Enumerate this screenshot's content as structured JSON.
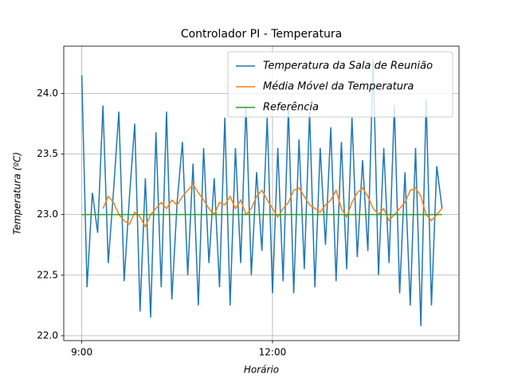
{
  "chart_data": {
    "type": "line",
    "title": "Controlador PI - Temperatura",
    "x_label": "Horário",
    "y_label": "Temperatura (ºC)",
    "x": [
      "9:00",
      "9:05",
      "9:10",
      "9:15",
      "9:20",
      "9:25",
      "9:30",
      "9:35",
      "9:40",
      "9:45",
      "9:50",
      "9:55",
      "10:00",
      "10:05",
      "10:10",
      "10:15",
      "10:20",
      "10:25",
      "10:30",
      "10:35",
      "10:40",
      "10:45",
      "10:50",
      "10:55",
      "11:00",
      "11:05",
      "11:10",
      "11:15",
      "11:20",
      "11:25",
      "11:30",
      "11:35",
      "11:40",
      "11:45",
      "11:50",
      "11:55",
      "12:00",
      "12:05",
      "12:10",
      "12:15",
      "12:20",
      "12:25",
      "12:30",
      "12:35",
      "12:40",
      "12:45",
      "12:50",
      "12:55",
      "13:00",
      "13:05",
      "13:10",
      "13:15",
      "13:20",
      "13:25",
      "13:30",
      "13:35",
      "13:40",
      "13:45",
      "13:50",
      "13:55",
      "14:00",
      "14:05",
      "14:10",
      "14:15",
      "14:20",
      "14:25",
      "14:30",
      "14:35",
      "14:40"
    ],
    "series": [
      {
        "name": "Temperatura da Sala de Reunião",
        "color": "#1f77b4",
        "values": [
          24.15,
          22.4,
          23.18,
          22.85,
          23.9,
          22.6,
          23.2,
          23.85,
          22.45,
          23.15,
          23.75,
          22.2,
          23.3,
          22.15,
          23.68,
          22.4,
          23.85,
          22.3,
          23.1,
          23.6,
          22.5,
          23.42,
          22.25,
          23.55,
          22.6,
          23.3,
          22.4,
          23.8,
          22.25,
          23.55,
          22.6,
          23.9,
          22.5,
          23.35,
          22.7,
          23.8,
          22.35,
          23.55,
          22.45,
          23.88,
          22.35,
          23.62,
          22.55,
          23.85,
          22.4,
          23.55,
          22.75,
          23.72,
          22.45,
          23.6,
          22.55,
          23.8,
          22.65,
          23.45,
          22.7,
          24.28,
          22.5,
          23.55,
          22.6,
          23.9,
          22.35,
          23.35,
          22.25,
          23.55,
          22.08,
          23.95,
          22.25,
          23.4,
          23.05
        ]
      },
      {
        "name": "Média Móvel da Temperatura",
        "color": "#ff7f0e",
        "values": [
          null,
          null,
          null,
          null,
          23.05,
          23.15,
          23.1,
          23.0,
          22.95,
          22.92,
          23.02,
          22.98,
          22.9,
          23.0,
          23.05,
          23.1,
          23.05,
          23.12,
          23.08,
          23.15,
          23.2,
          23.25,
          23.18,
          23.12,
          23.05,
          23.0,
          23.1,
          23.08,
          23.15,
          23.05,
          23.12,
          23.0,
          23.05,
          23.15,
          23.2,
          23.12,
          23.05,
          22.98,
          23.05,
          23.1,
          23.2,
          23.22,
          23.15,
          23.08,
          23.05,
          23.02,
          23.08,
          23.12,
          23.2,
          23.05,
          22.98,
          23.1,
          23.18,
          23.22,
          23.15,
          23.05,
          23.0,
          23.05,
          22.95,
          23.0,
          23.05,
          23.1,
          23.2,
          23.22,
          23.15,
          23.0,
          22.95,
          23.0,
          23.05
        ]
      },
      {
        "name": "Referência",
        "color": "#2ca02c",
        "values": [
          23,
          23,
          23,
          23,
          23,
          23,
          23,
          23,
          23,
          23,
          23,
          23,
          23,
          23,
          23,
          23,
          23,
          23,
          23,
          23,
          23,
          23,
          23,
          23,
          23,
          23,
          23,
          23,
          23,
          23,
          23,
          23,
          23,
          23,
          23,
          23,
          23,
          23,
          23,
          23,
          23,
          23,
          23,
          23,
          23,
          23,
          23,
          23,
          23,
          23,
          23,
          23,
          23,
          23,
          23,
          23,
          23,
          23,
          23,
          23,
          23,
          23,
          23,
          23,
          23,
          23,
          23,
          23,
          23
        ]
      }
    ],
    "xlim": [
      "8:43",
      "14:56"
    ],
    "xticks": [
      "9:00",
      "12:00"
    ],
    "ylim": [
      21.96,
      24.39
    ],
    "yticks": [
      {
        "value": 22,
        "label": "22.0"
      },
      22.5,
      {
        "value": 23,
        "label": "23.0"
      },
      23.5,
      {
        "value": 24,
        "label": "24.0"
      }
    ],
    "grid": true,
    "legend": "upper right"
  }
}
